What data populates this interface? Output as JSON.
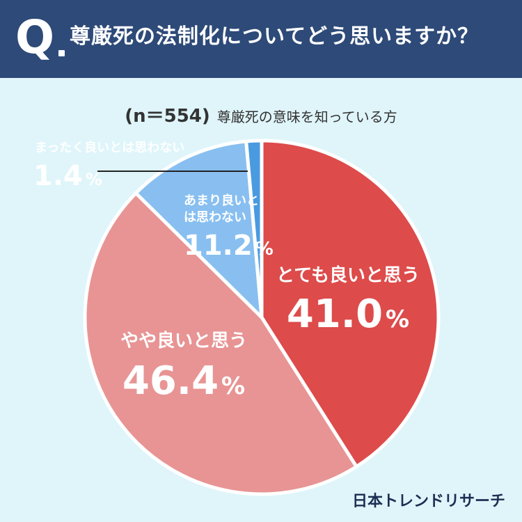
{
  "header": {
    "q": "Q",
    "question": "尊厳死の法制化についてどう思いますか？"
  },
  "sample": {
    "n": "(n＝554)",
    "description": "尊厳死の意味を知っている方"
  },
  "brand": "日本トレンドリサーチ",
  "chart_data": {
    "type": "pie",
    "start": "12 o'clock",
    "direction": "clockwise",
    "slices": [
      {
        "label": "とても良いと思う",
        "value": 41.0,
        "display": "41.0",
        "unit": "%",
        "color": "#dd4b4b"
      },
      {
        "label": "やや良いと思う",
        "value": 46.4,
        "display": "46.4",
        "unit": "%",
        "color": "#e89494"
      },
      {
        "label": "あまり良いとは思わない",
        "value": 11.2,
        "display": "11.2",
        "unit": "%",
        "color": "#88bff0"
      },
      {
        "label": "まったく良いとは思わない",
        "value": 1.4,
        "display": "1.4",
        "unit": "%",
        "color": "#4a9ae0"
      }
    ]
  }
}
